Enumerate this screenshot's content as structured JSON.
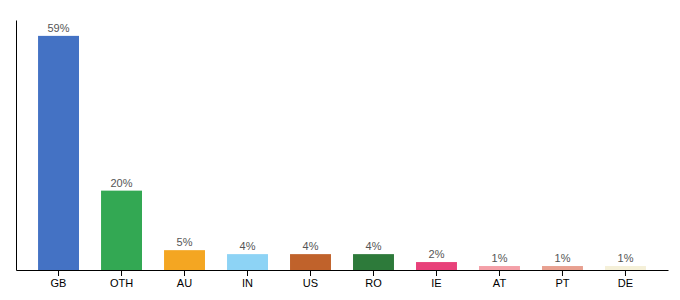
{
  "chart_data": {
    "type": "bar",
    "categories": [
      "GB",
      "OTH",
      "AU",
      "IN",
      "US",
      "RO",
      "IE",
      "AT",
      "PT",
      "DE"
    ],
    "values": [
      59,
      20,
      5,
      4,
      4,
      4,
      2,
      1,
      1,
      1
    ],
    "value_labels": [
      "59%",
      "20%",
      "5%",
      "4%",
      "4%",
      "4%",
      "2%",
      "1%",
      "1%",
      "1%"
    ],
    "colors": [
      "#4472C4",
      "#33A853",
      "#F4A622",
      "#8DD3F5",
      "#C0622B",
      "#2D7A3A",
      "#E8417A",
      "#F4A0A8",
      "#E8A090",
      "#F5F0D8"
    ],
    "ylim": [
      0,
      63
    ],
    "data_labels": true,
    "tick_labels": "x",
    "grid": false
  }
}
